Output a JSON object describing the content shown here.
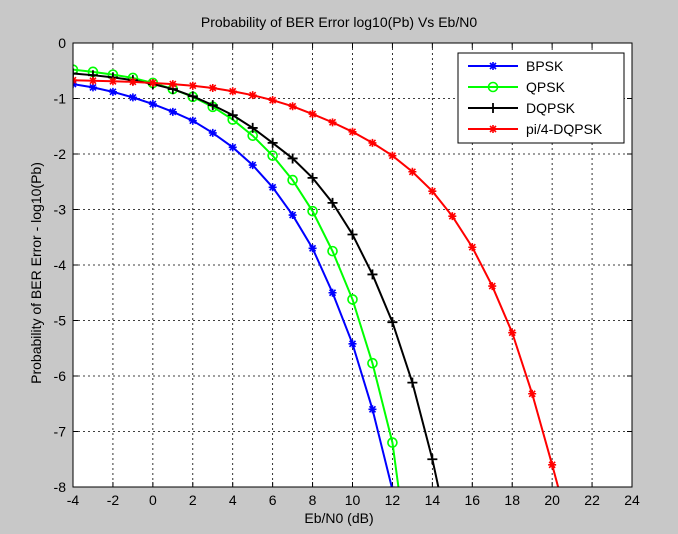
{
  "chart_data": {
    "type": "line",
    "title": "Probability of BER Error log10(Pb) Vs Eb/N0",
    "xlabel": "Eb/N0 (dB)",
    "ylabel": "Probability of BER Error - log10(Pb)",
    "xlim": [
      -4,
      24
    ],
    "ylim": [
      -8,
      0
    ],
    "xticks": [
      -4,
      -2,
      0,
      2,
      4,
      6,
      8,
      10,
      12,
      14,
      16,
      18,
      20,
      22,
      24
    ],
    "yticks": [
      0,
      -1,
      -2,
      -3,
      -4,
      -5,
      -6,
      -7,
      -8
    ],
    "grid": true,
    "grid_style": "dashed",
    "legend_position": "top-right",
    "series": [
      {
        "name": "BPSK",
        "color": "#0000ff",
        "marker": "star",
        "x": [
          -4,
          -3,
          -2,
          -1,
          0,
          1,
          2,
          3,
          4,
          5,
          6,
          7,
          8,
          9,
          10,
          11,
          12
        ],
        "y": [
          -0.74,
          -0.8,
          -0.88,
          -0.98,
          -1.1,
          -1.24,
          -1.4,
          -1.62,
          -1.88,
          -2.2,
          -2.6,
          -3.1,
          -3.7,
          -4.5,
          -5.42,
          -6.6,
          -8.05
        ]
      },
      {
        "name": "QPSK",
        "color": "#00ff00",
        "marker": "circle",
        "x": [
          -4,
          -3,
          -2,
          -1,
          0,
          1,
          2,
          3,
          4,
          5,
          6,
          7,
          8,
          9,
          10,
          11,
          12,
          12.3
        ],
        "y": [
          -0.48,
          -0.52,
          -0.57,
          -0.63,
          -0.72,
          -0.83,
          -0.97,
          -1.15,
          -1.38,
          -1.67,
          -2.03,
          -2.47,
          -3.03,
          -3.75,
          -4.62,
          -5.77,
          -7.2,
          -8.0
        ]
      },
      {
        "name": "DQPSK",
        "color": "#000000",
        "marker": "plus",
        "x": [
          -4,
          -3,
          -2,
          -1,
          0,
          1,
          2,
          3,
          4,
          5,
          6,
          7,
          8,
          9,
          10,
          11,
          12,
          13,
          14,
          14.3
        ],
        "y": [
          -0.55,
          -0.58,
          -0.62,
          -0.67,
          -0.74,
          -0.83,
          -0.96,
          -1.12,
          -1.3,
          -1.53,
          -1.8,
          -2.08,
          -2.43,
          -2.88,
          -3.45,
          -4.17,
          -5.03,
          -6.12,
          -7.5,
          -8.0
        ]
      },
      {
        "name": "pi/4-DQPSK",
        "color": "#ff0000",
        "marker": "star",
        "x": [
          -4,
          -3,
          -2,
          -1,
          0,
          1,
          2,
          3,
          4,
          5,
          6,
          7,
          8,
          9,
          10,
          11,
          12,
          13,
          14,
          15,
          16,
          17,
          18,
          19,
          20,
          20.3
        ],
        "y": [
          -0.67,
          -0.68,
          -0.69,
          -0.7,
          -0.72,
          -0.74,
          -0.77,
          -0.81,
          -0.87,
          -0.94,
          -1.03,
          -1.14,
          -1.28,
          -1.43,
          -1.6,
          -1.8,
          -2.03,
          -2.32,
          -2.67,
          -3.12,
          -3.68,
          -4.38,
          -5.22,
          -6.32,
          -7.6,
          -8.0
        ]
      }
    ]
  }
}
